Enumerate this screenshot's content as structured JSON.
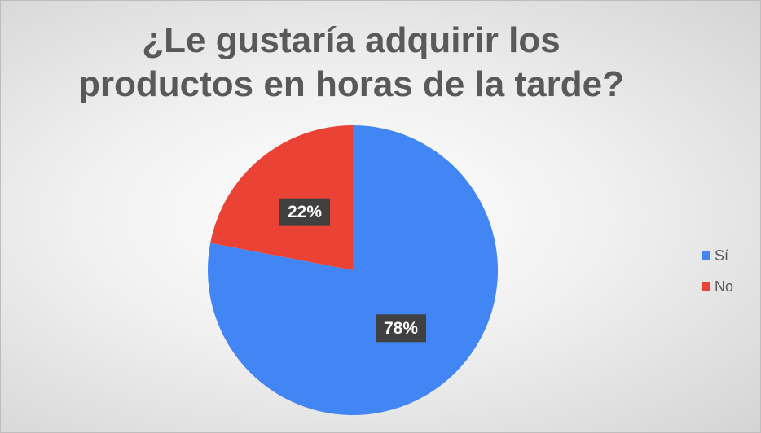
{
  "chart_data": {
    "type": "pie",
    "title": "¿Le gustaría adquirir los productos en horas de la tarde?",
    "categories": [
      "Sí",
      "No"
    ],
    "values": [
      78,
      22
    ],
    "value_labels": [
      "78%",
      "22%"
    ],
    "colors": [
      "#4285f4",
      "#ea4335"
    ],
    "legend": "right"
  }
}
